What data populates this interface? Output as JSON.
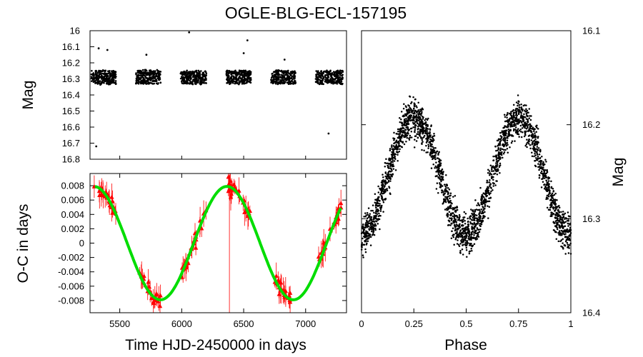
{
  "chart_data": [
    {
      "type": "scatter",
      "panel": "light-curve",
      "title": "OGLE-BLG-ECL-157195",
      "xlabel": "",
      "ylabel": "Mag",
      "xlim": [
        5260,
        7330
      ],
      "ylim": [
        16.8,
        16.0
      ],
      "y_inverted": true,
      "ytick_labels": [
        "16",
        "16.1",
        "16.2",
        "16.3",
        "16.4",
        "16.5",
        "16.6",
        "16.7",
        "16.8"
      ],
      "series": [
        {
          "name": "observations",
          "color": "#000000",
          "seasons": [
            {
              "start": 5270,
              "end": 5470
            },
            {
              "start": 5630,
              "end": 5830
            },
            {
              "start": 5990,
              "end": 6200
            },
            {
              "start": 6360,
              "end": 6560
            },
            {
              "start": 6720,
              "end": 6920
            },
            {
              "start": 7080,
              "end": 7300
            }
          ],
          "mag_center": 16.29,
          "mag_spread": 0.05,
          "outliers": [
            {
              "x": 5330,
              "y": 16.11
            },
            {
              "x": 5400,
              "y": 16.12
            },
            {
              "x": 5310,
              "y": 16.72
            },
            {
              "x": 6060,
              "y": 16.01
            },
            {
              "x": 5715,
              "y": 16.15
            },
            {
              "x": 6530,
              "y": 16.06
            },
            {
              "x": 6500,
              "y": 16.14
            },
            {
              "x": 7185,
              "y": 16.64
            },
            {
              "x": 6830,
              "y": 16.18
            }
          ]
        }
      ]
    },
    {
      "type": "scatter",
      "panel": "o-c",
      "title": "",
      "xlabel": "Time HJD-2450000 in days",
      "ylabel": "O-C in days",
      "xlim": [
        5260,
        7330
      ],
      "ylim": [
        -0.0097,
        0.0097
      ],
      "xtick_labels": [
        "5500",
        "6000",
        "6500",
        "7000"
      ],
      "xticks": [
        5500,
        6000,
        6500,
        7000
      ],
      "ytick_labels": [
        "0.008",
        "0.006",
        "0.004",
        "0.002",
        "0",
        "-0.002",
        "-0.004",
        "-0.006",
        "-0.008"
      ],
      "yticks": [
        0.008,
        0.006,
        0.004,
        0.002,
        0,
        -0.002,
        -0.004,
        -0.006,
        -0.008
      ],
      "series": [
        {
          "name": "O-C measurements",
          "color": "#ff0000",
          "marker": "triangle",
          "error_bars": true,
          "seasons": [
            {
              "start": 5290,
              "end": 5470
            },
            {
              "start": 5650,
              "end": 5830
            },
            {
              "start": 5990,
              "end": 6200
            },
            {
              "start": 6370,
              "end": 6560
            },
            {
              "start": 6740,
              "end": 6920
            },
            {
              "start": 7090,
              "end": 7290
            }
          ]
        },
        {
          "name": "sinusoidal fit",
          "color": "#00dd00",
          "model": "sine",
          "amplitude": 0.0079,
          "period": 1073,
          "phase_zero_crossing": 5560,
          "x_start": 5300,
          "x_end": 7290
        }
      ]
    },
    {
      "type": "scatter",
      "panel": "phased",
      "title": "",
      "xlabel": "Phase",
      "ylabel": "Mag",
      "xlim": [
        0,
        1
      ],
      "ylim": [
        16.4,
        16.1
      ],
      "y_inverted": true,
      "y_axis_side": "right",
      "xtick_labels": [
        "0",
        "0.25",
        "0.5",
        "0.75",
        "1"
      ],
      "xticks": [
        0,
        0.25,
        0.5,
        0.75,
        1
      ],
      "ytick_labels": [
        "16.1",
        "16.2",
        "16.3",
        "16.4"
      ],
      "yticks": [
        16.1,
        16.2,
        16.3,
        16.4
      ],
      "series": [
        {
          "name": "phased light curve",
          "color": "#000000",
          "model": "ellipsoidal",
          "mean_mag": 16.255,
          "amplitude": 0.062,
          "scatter": 0.02,
          "point_count": 2600
        }
      ]
    }
  ]
}
